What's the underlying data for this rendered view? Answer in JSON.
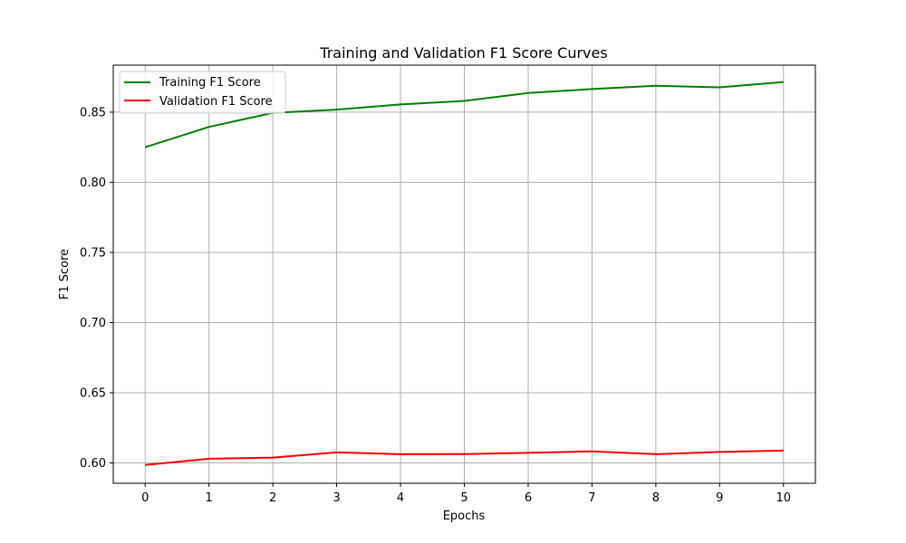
{
  "chart_data": {
    "type": "line",
    "title": "Training and Validation F1 Score Curves",
    "xlabel": "Epochs",
    "ylabel": "F1 Score",
    "x": [
      0,
      1,
      2,
      3,
      4,
      5,
      6,
      7,
      8,
      9,
      10
    ],
    "xlim": [
      -0.5,
      10.5
    ],
    "ylim": [
      0.5855,
      0.8835
    ],
    "x_ticks": [
      "0",
      "1",
      "2",
      "3",
      "4",
      "5",
      "6",
      "7",
      "8",
      "9",
      "10"
    ],
    "y_ticks": [
      "0.60",
      "0.65",
      "0.70",
      "0.75",
      "0.80",
      "0.85"
    ],
    "grid": true,
    "legend_position": "top-left",
    "series": [
      {
        "name": "Training F1 Score",
        "color": "#008000",
        "values": [
          0.825,
          0.8395,
          0.8495,
          0.8518,
          0.8555,
          0.858,
          0.8637,
          0.8665,
          0.8688,
          0.8677,
          0.8715
        ]
      },
      {
        "name": "Validation F1 Score",
        "color": "#ff0000",
        "values": [
          0.5985,
          0.603,
          0.6038,
          0.6075,
          0.6062,
          0.6063,
          0.6072,
          0.6083,
          0.6062,
          0.6078,
          0.6088
        ]
      }
    ]
  }
}
